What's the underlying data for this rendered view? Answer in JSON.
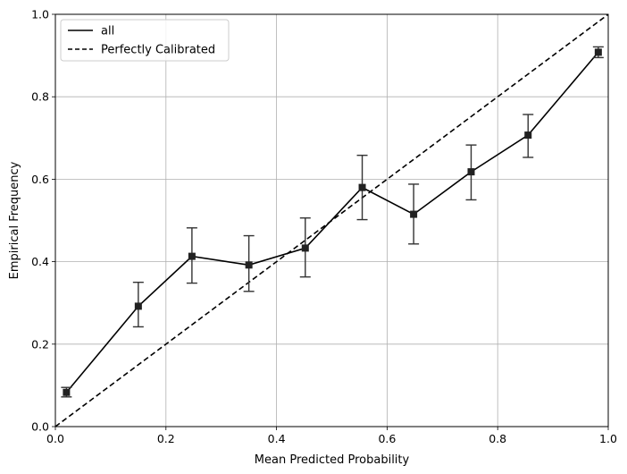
{
  "chart_data": {
    "type": "line",
    "title": "",
    "xlabel": "Mean Predicted Probability",
    "ylabel": "Empirical Frequency",
    "xlim": [
      0,
      1
    ],
    "ylim": [
      0,
      1
    ],
    "grid": true,
    "legend_position": "top-left",
    "xticks": [
      "0.0",
      "0.2",
      "0.4",
      "0.6",
      "0.8",
      "1.0"
    ],
    "yticks": [
      "0.0",
      "0.2",
      "0.4",
      "0.6",
      "0.8",
      "1.0"
    ],
    "series": [
      {
        "name": "all",
        "style": "solid",
        "color": "#000000",
        "marker": "square",
        "x": [
          0.02,
          0.15,
          0.247,
          0.35,
          0.452,
          0.555,
          0.648,
          0.752,
          0.855,
          0.982
        ],
        "y": [
          0.083,
          0.292,
          0.413,
          0.392,
          0.433,
          0.58,
          0.515,
          0.618,
          0.707,
          0.908
        ],
        "err_low": [
          0.072,
          0.242,
          0.348,
          0.328,
          0.363,
          0.502,
          0.443,
          0.55,
          0.653,
          0.895
        ],
        "err_high": [
          0.095,
          0.35,
          0.482,
          0.463,
          0.506,
          0.658,
          0.588,
          0.683,
          0.757,
          0.921
        ]
      },
      {
        "name": "Perfectly Calibrated",
        "style": "dashed",
        "color": "#000000",
        "x": [
          0,
          1
        ],
        "y": [
          0,
          1
        ]
      }
    ]
  }
}
